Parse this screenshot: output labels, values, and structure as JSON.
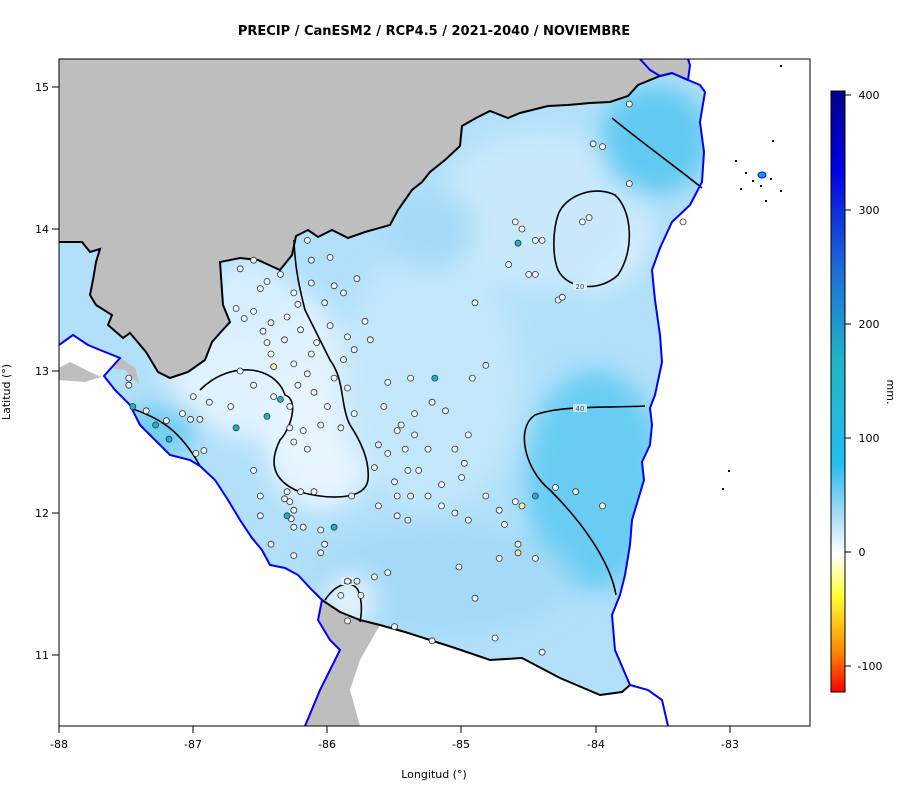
{
  "title": "PRECIP / CanESM2 / RCP4.5 / 2021-2040 / NOVIEMBRE",
  "xlabel": "Longitud (°)",
  "ylabel": "Latitud (°)",
  "x_ticks": [
    "-88",
    "-87",
    "-86",
    "-85",
    "-84",
    "-83"
  ],
  "y_ticks": [
    "15",
    "14",
    "13",
    "12",
    "11"
  ],
  "colorbar": {
    "unit": "mm.",
    "ticks": [
      "400",
      "300",
      "200",
      "100",
      "0",
      "-100"
    ],
    "min": -120,
    "max": 405
  },
  "contour_labels": [
    "20",
    "40",
    "20"
  ],
  "colors": {
    "land": "#bebebe",
    "sea": "#ffffff",
    "coast": "#0000ff",
    "border": "#000000",
    "field_low": "#e3f3ff",
    "field_mid": "#a9ddf8",
    "field_high": "#62cbf2"
  },
  "chart_data": {
    "type": "map",
    "variable": "PRECIP",
    "model": "CanESM2",
    "scenario": "RCP4.5",
    "period": "2021-2040",
    "month": "NOVIEMBRE",
    "xlim": [
      -88,
      -82.4
    ],
    "ylim": [
      10.5,
      15.2
    ],
    "contour_levels": [
      20,
      40
    ],
    "stations": [
      [
        -86.55,
        13.78,
        "w"
      ],
      [
        -86.65,
        13.72,
        "w"
      ],
      [
        -86.5,
        13.58,
        "w"
      ],
      [
        -86.45,
        13.63,
        "w"
      ],
      [
        -86.35,
        13.68,
        "w"
      ],
      [
        -86.25,
        13.55,
        "w"
      ],
      [
        -86.12,
        13.78,
        "w"
      ],
      [
        -86.12,
        13.62,
        "w"
      ],
      [
        -85.95,
        13.6,
        "w"
      ],
      [
        -85.98,
        13.8,
        "w"
      ],
      [
        -85.88,
        13.55,
        "w"
      ],
      [
        -85.78,
        13.65,
        "w"
      ],
      [
        -86.15,
        13.92,
        "w"
      ],
      [
        -86.02,
        13.48,
        "w"
      ],
      [
        -86.22,
        13.47,
        "w"
      ],
      [
        -86.3,
        13.38,
        "w"
      ],
      [
        -86.42,
        13.34,
        "w"
      ],
      [
        -86.48,
        13.28,
        "w"
      ],
      [
        -86.68,
        13.44,
        "w"
      ],
      [
        -86.62,
        13.37,
        "w"
      ],
      [
        -86.55,
        13.42,
        "w"
      ],
      [
        -86.32,
        13.22,
        "w"
      ],
      [
        -86.2,
        13.29,
        "w"
      ],
      [
        -86.08,
        13.2,
        "w"
      ],
      [
        -86.12,
        13.12,
        "w"
      ],
      [
        -85.98,
        13.32,
        "w"
      ],
      [
        -85.85,
        13.24,
        "w"
      ],
      [
        -85.88,
        13.08,
        "w"
      ],
      [
        -85.72,
        13.35,
        "w"
      ],
      [
        -85.68,
        13.22,
        "w"
      ],
      [
        -85.8,
        13.15,
        "w"
      ],
      [
        -86.42,
        13.12,
        "w"
      ],
      [
        -86.4,
        13.03,
        "y"
      ],
      [
        -86.45,
        13.2,
        "w"
      ],
      [
        -86.25,
        13.05,
        "w"
      ],
      [
        -86.15,
        12.98,
        "w"
      ],
      [
        -86.22,
        12.9,
        "w"
      ],
      [
        -86.1,
        12.85,
        "w"
      ],
      [
        -85.95,
        12.95,
        "w"
      ],
      [
        -85.85,
        12.88,
        "w"
      ],
      [
        -86.0,
        12.75,
        "w"
      ],
      [
        -85.8,
        12.7,
        "w"
      ],
      [
        -85.9,
        12.6,
        "w"
      ],
      [
        -86.05,
        12.62,
        "w"
      ],
      [
        -86.28,
        12.75,
        "w"
      ],
      [
        -86.4,
        12.82,
        "w"
      ],
      [
        -86.55,
        12.9,
        "w"
      ],
      [
        -86.65,
        13.0,
        "w"
      ],
      [
        -86.72,
        12.75,
        "w"
      ],
      [
        -86.88,
        12.78,
        "w"
      ],
      [
        -87.0,
        12.82,
        "w"
      ],
      [
        -87.02,
        12.66,
        "w"
      ],
      [
        -86.95,
        12.66,
        "w"
      ],
      [
        -86.92,
        12.44,
        "w"
      ],
      [
        -86.98,
        12.42,
        "w"
      ],
      [
        -87.08,
        12.7,
        "w"
      ],
      [
        -87.2,
        12.65,
        "w"
      ],
      [
        -87.35,
        12.72,
        "w"
      ],
      [
        -87.48,
        12.95,
        "w"
      ],
      [
        -87.48,
        12.9,
        "w"
      ],
      [
        -87.18,
        12.52,
        "c"
      ],
      [
        -87.45,
        12.75,
        "c"
      ],
      [
        -87.28,
        12.62,
        "c"
      ],
      [
        -86.68,
        12.6,
        "c"
      ],
      [
        -86.45,
        12.68,
        "c"
      ],
      [
        -86.35,
        12.8,
        "c"
      ],
      [
        -86.28,
        12.6,
        "w"
      ],
      [
        -86.18,
        12.58,
        "w"
      ],
      [
        -86.25,
        12.5,
        "w"
      ],
      [
        -86.15,
        12.45,
        "w"
      ],
      [
        -86.55,
        12.3,
        "w"
      ],
      [
        -86.5,
        12.12,
        "w"
      ],
      [
        -86.3,
        12.15,
        "w"
      ],
      [
        -86.28,
        12.08,
        "w"
      ],
      [
        -86.32,
        12.1,
        "w"
      ],
      [
        -86.25,
        12.02,
        "w"
      ],
      [
        -86.2,
        12.15,
        "w"
      ],
      [
        -86.1,
        12.15,
        "w"
      ],
      [
        -86.27,
        11.96,
        "w"
      ],
      [
        -86.25,
        11.9,
        "w"
      ],
      [
        -86.18,
        11.9,
        "w"
      ],
      [
        -86.3,
        11.98,
        "c"
      ],
      [
        -86.05,
        11.88,
        "w"
      ],
      [
        -86.02,
        11.78,
        "w"
      ],
      [
        -86.42,
        11.78,
        "w"
      ],
      [
        -86.25,
        11.7,
        "w"
      ],
      [
        -86.5,
        11.98,
        "w"
      ],
      [
        -85.95,
        11.9,
        "c"
      ],
      [
        -86.05,
        11.72,
        "w"
      ],
      [
        -85.85,
        11.52,
        "w"
      ],
      [
        -85.9,
        11.42,
        "w"
      ],
      [
        -85.78,
        11.52,
        "w"
      ],
      [
        -85.75,
        11.42,
        "w"
      ],
      [
        -85.65,
        11.55,
        "w"
      ],
      [
        -85.55,
        11.58,
        "w"
      ],
      [
        -85.85,
        11.24,
        "w"
      ],
      [
        -85.82,
        12.12,
        "w"
      ],
      [
        -85.62,
        12.05,
        "w"
      ],
      [
        -85.48,
        11.98,
        "w"
      ],
      [
        -85.4,
        11.95,
        "w"
      ],
      [
        -85.25,
        12.12,
        "w"
      ],
      [
        -85.15,
        12.05,
        "w"
      ],
      [
        -85.05,
        12.0,
        "w"
      ],
      [
        -84.95,
        11.95,
        "w"
      ],
      [
        -85.15,
        12.2,
        "w"
      ],
      [
        -85.0,
        12.25,
        "w"
      ],
      [
        -84.98,
        12.35,
        "w"
      ],
      [
        -85.05,
        12.45,
        "w"
      ],
      [
        -84.95,
        12.55,
        "w"
      ],
      [
        -85.25,
        12.45,
        "w"
      ],
      [
        -85.32,
        12.3,
        "w"
      ],
      [
        -85.4,
        12.3,
        "w"
      ],
      [
        -85.35,
        12.55,
        "w"
      ],
      [
        -85.48,
        12.58,
        "w"
      ],
      [
        -85.42,
        12.45,
        "w"
      ],
      [
        -85.38,
        12.12,
        "w"
      ],
      [
        -85.55,
        12.42,
        "w"
      ],
      [
        -85.62,
        12.48,
        "w"
      ],
      [
        -85.5,
        12.22,
        "w"
      ],
      [
        -85.65,
        12.32,
        "w"
      ],
      [
        -85.48,
        12.12,
        "w"
      ],
      [
        -85.35,
        12.7,
        "w"
      ],
      [
        -85.45,
        12.62,
        "w"
      ],
      [
        -85.58,
        12.75,
        "w"
      ],
      [
        -85.55,
        12.92,
        "w"
      ],
      [
        -85.38,
        12.95,
        "w"
      ],
      [
        -85.22,
        12.78,
        "w"
      ],
      [
        -85.12,
        12.72,
        "w"
      ],
      [
        -84.92,
        12.95,
        "w"
      ],
      [
        -84.82,
        13.04,
        "w"
      ],
      [
        -85.2,
        12.95,
        "c"
      ],
      [
        -84.82,
        12.12,
        "w"
      ],
      [
        -84.72,
        12.02,
        "w"
      ],
      [
        -84.6,
        12.08,
        "w"
      ],
      [
        -84.55,
        12.05,
        "y"
      ],
      [
        -84.58,
        11.78,
        "w"
      ],
      [
        -84.68,
        11.92,
        "w"
      ],
      [
        -84.72,
        11.68,
        "w"
      ],
      [
        -84.45,
        11.68,
        "w"
      ],
      [
        -84.58,
        11.72,
        "y"
      ],
      [
        -85.02,
        11.62,
        "w"
      ],
      [
        -84.9,
        11.4,
        "w"
      ],
      [
        -84.75,
        11.12,
        "w"
      ],
      [
        -84.4,
        11.02,
        "w"
      ],
      [
        -85.5,
        11.2,
        "w"
      ],
      [
        -85.22,
        11.1,
        "w"
      ],
      [
        -84.45,
        12.12,
        "c"
      ],
      [
        -84.15,
        12.15,
        "w"
      ],
      [
        -84.3,
        12.18,
        "w"
      ],
      [
        -83.95,
        12.05,
        "w"
      ],
      [
        -84.9,
        13.48,
        "w"
      ],
      [
        -84.5,
        13.68,
        "w"
      ],
      [
        -84.45,
        13.68,
        "w"
      ],
      [
        -84.55,
        14.0,
        "w"
      ],
      [
        -84.6,
        14.05,
        "w"
      ],
      [
        -84.58,
        13.9,
        "c"
      ],
      [
        -84.65,
        13.75,
        "w"
      ],
      [
        -84.45,
        13.92,
        "w"
      ],
      [
        -84.4,
        13.92,
        "w"
      ],
      [
        -84.28,
        13.5,
        "w"
      ],
      [
        -84.25,
        13.52,
        "w"
      ],
      [
        -84.1,
        14.05,
        "w"
      ],
      [
        -84.05,
        14.08,
        "w"
      ],
      [
        -84.02,
        14.6,
        "w"
      ],
      [
        -83.95,
        14.58,
        "w"
      ],
      [
        -83.75,
        14.32,
        "w"
      ],
      [
        -83.75,
        14.88,
        "w"
      ],
      [
        -83.35,
        14.05,
        "w"
      ]
    ]
  }
}
